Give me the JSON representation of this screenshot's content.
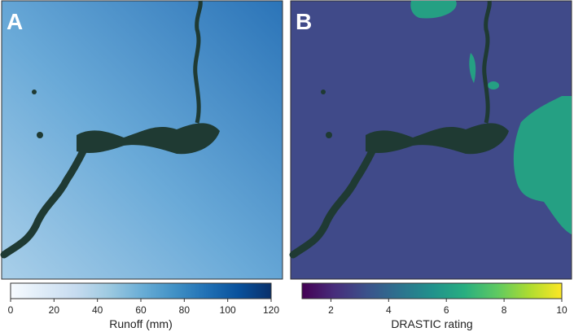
{
  "panels": [
    {
      "letter": "A",
      "colorbar": {
        "label": "Runoff (mm)",
        "colormap": "Blues",
        "lim": [
          0,
          120
        ],
        "ticks": [
          0,
          20,
          40,
          60,
          80,
          100,
          120
        ]
      }
    },
    {
      "letter": "B",
      "colorbar": {
        "label": "DRASTIC rating",
        "colormap": "viridis",
        "lim": [
          1,
          10
        ],
        "ticks": [
          2,
          4,
          6,
          8,
          10
        ]
      }
    }
  ]
}
